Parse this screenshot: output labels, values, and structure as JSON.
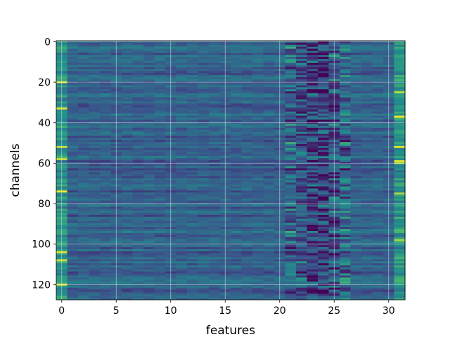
{
  "chart_data": {
    "type": "heatmap",
    "title": "",
    "xlabel": "features",
    "ylabel": "channels",
    "n_features": 32,
    "n_channels": 128,
    "x_ticks": [
      0,
      5,
      10,
      15,
      20,
      25,
      30
    ],
    "y_ticks": [
      0,
      20,
      40,
      60,
      80,
      100,
      120
    ],
    "xlim": [
      -0.5,
      31.5
    ],
    "ylim": [
      127.5,
      -0.5
    ],
    "grid": true,
    "colormap": "viridis",
    "colormap_stops": [
      "#440154",
      "#3b528b",
      "#21918c",
      "#5ec962",
      "#fde725"
    ],
    "value_range": [
      0,
      1
    ],
    "cell_values_note": "",
    "dark_band_features": [
      21,
      26
    ],
    "bright_columns": [
      0,
      31
    ]
  }
}
